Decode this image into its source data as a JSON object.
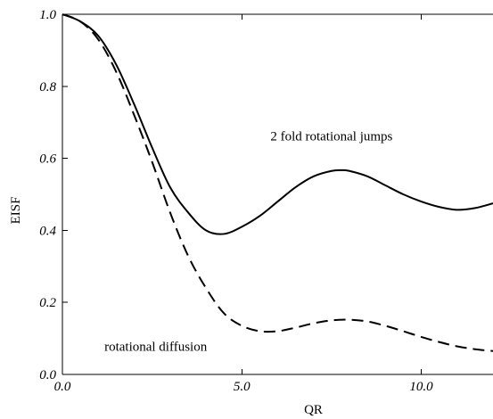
{
  "chart_data": {
    "type": "line",
    "xlabel": "QR",
    "ylabel": "EISF",
    "xlim": [
      0.0,
      12.0
    ],
    "ylim": [
      0.0,
      1.0
    ],
    "x_ticks": [
      0.0,
      5.0,
      10.0
    ],
    "x_tick_labels": [
      "0.0",
      "5.0",
      "10.0"
    ],
    "y_ticks": [
      0.0,
      0.2,
      0.4,
      0.6,
      0.8,
      1.0
    ],
    "y_tick_labels": [
      "0.0",
      "0.2",
      "0.4",
      "0.6",
      "0.8",
      "1.0"
    ],
    "grid": false,
    "annotations": [
      {
        "text": "2 fold rotational jumps",
        "x": 7.5,
        "y": 0.65
      },
      {
        "text": "rotational diffusion",
        "x": 2.6,
        "y": 0.065
      }
    ],
    "series": [
      {
        "style": "solid",
        "color": "#000000",
        "x": [
          0.0,
          0.5,
          1.0,
          1.5,
          2.0,
          2.5,
          3.0,
          3.5,
          4.0,
          4.5,
          5.0,
          5.5,
          6.0,
          6.5,
          7.0,
          7.5,
          7.8,
          8.0,
          8.5,
          9.0,
          9.5,
          10.0,
          10.5,
          11.0,
          11.5,
          12.0
        ],
        "y": [
          1.0,
          0.98,
          0.94,
          0.86,
          0.75,
          0.63,
          0.52,
          0.45,
          0.4,
          0.39,
          0.41,
          0.44,
          0.48,
          0.52,
          0.55,
          0.565,
          0.567,
          0.565,
          0.55,
          0.525,
          0.5,
          0.48,
          0.465,
          0.457,
          0.462,
          0.475
        ]
      },
      {
        "style": "dashed",
        "color": "#000000",
        "x": [
          0.0,
          0.5,
          1.0,
          1.5,
          2.0,
          2.5,
          3.0,
          3.5,
          4.0,
          4.5,
          5.0,
          5.5,
          6.0,
          6.5,
          7.0,
          7.5,
          8.0,
          8.5,
          9.0,
          9.5,
          10.0,
          10.5,
          11.0,
          11.5,
          12.0
        ],
        "y": [
          1.0,
          0.98,
          0.93,
          0.84,
          0.72,
          0.59,
          0.45,
          0.33,
          0.24,
          0.17,
          0.135,
          0.12,
          0.12,
          0.13,
          0.142,
          0.15,
          0.152,
          0.147,
          0.135,
          0.12,
          0.104,
          0.09,
          0.078,
          0.07,
          0.065
        ]
      }
    ]
  }
}
